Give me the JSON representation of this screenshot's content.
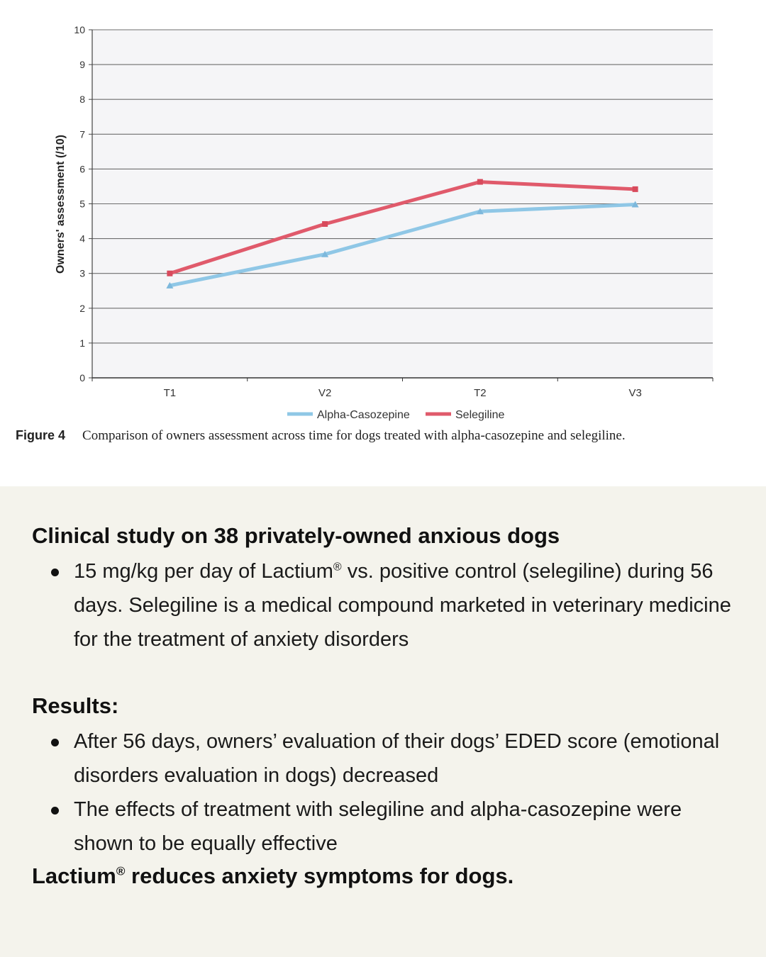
{
  "chart_data": {
    "type": "line",
    "categories": [
      "T1",
      "V2",
      "T2",
      "V3"
    ],
    "series": [
      {
        "name": "Alpha-Casozepine",
        "values": [
          2.65,
          3.55,
          4.78,
          4.98
        ],
        "color": "#8fc7e6",
        "marker": "triangle"
      },
      {
        "name": "Selegiline",
        "values": [
          3.0,
          4.42,
          5.63,
          5.42
        ],
        "color": "#e05a6b",
        "marker": "square"
      }
    ],
    "ylabel": "Owners' assessment (/10)",
    "xlabel": "",
    "ylim": [
      0,
      10
    ],
    "yticks": [
      0,
      1,
      2,
      3,
      4,
      5,
      6,
      7,
      8,
      9,
      10
    ],
    "grid": true,
    "legend_position": "bottom-center"
  },
  "figure": {
    "label": "Figure 4",
    "caption": "Comparison of owners assessment across time for dogs treated with alpha-casozepine and selegiline."
  },
  "study": {
    "heading": "Clinical study on 38 privately-owned anxious dogs",
    "bullets": [
      {
        "pre": "15 mg/kg per day of Lactium",
        "sup": "®",
        "post": " vs. positive control (selegiline) during 56 days. Selegiline is a medical compound marketed in veterinary medicine for the treatment of anxiety disorders"
      }
    ]
  },
  "results": {
    "heading": "Results:",
    "bullets": [
      "After 56 days, owners’ evaluation of their dogs’ EDED score (emotional disorders evaluation in dogs) decreased",
      "The effects of treatment with selegiline and alpha-casozepine were shown to be equally effective"
    ]
  },
  "conclusion": {
    "pre": "Lactium",
    "sup": "®",
    "post": " reduces anxiety symptoms for dogs."
  }
}
